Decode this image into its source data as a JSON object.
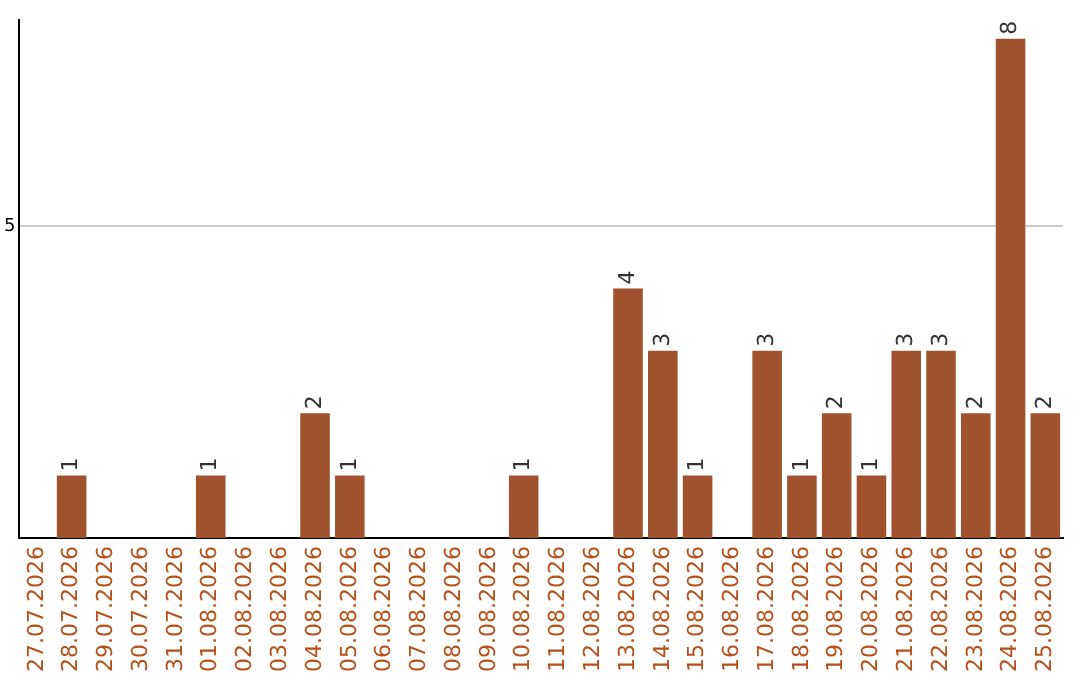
{
  "chart_data": {
    "type": "bar",
    "categories": [
      "27.07.2026",
      "28.07.2026",
      "29.07.2026",
      "30.07.2026",
      "31.07.2026",
      "01.08.2026",
      "02.08.2026",
      "03.08.2026",
      "04.08.2026",
      "05.08.2026",
      "06.08.2026",
      "07.08.2026",
      "08.08.2026",
      "09.08.2026",
      "10.08.2026",
      "11.08.2026",
      "12.08.2026",
      "13.08.2026",
      "14.08.2026",
      "15.08.2026",
      "16.08.2026",
      "17.08.2026",
      "18.08.2026",
      "19.08.2026",
      "20.08.2026",
      "21.08.2026",
      "22.08.2026",
      "23.08.2026",
      "24.08.2026",
      "25.08.2026"
    ],
    "values": [
      0,
      1,
      0,
      0,
      0,
      1,
      0,
      0,
      2,
      1,
      0,
      0,
      0,
      0,
      1,
      0,
      0,
      4,
      3,
      1,
      0,
      3,
      1,
      2,
      1,
      3,
      3,
      2,
      8,
      2
    ],
    "value_labels": [
      null,
      "1",
      null,
      null,
      null,
      "1",
      null,
      null,
      "2",
      "1",
      null,
      null,
      null,
      null,
      "1",
      null,
      null,
      "4",
      "3",
      "1",
      null,
      "3",
      "1",
      "2",
      "1",
      "3",
      "3",
      "2",
      "8",
      "2"
    ],
    "color": "#a0522d",
    "ylim": [
      0,
      8.3
    ],
    "yticks": [
      5
    ],
    "grid": "y"
  }
}
